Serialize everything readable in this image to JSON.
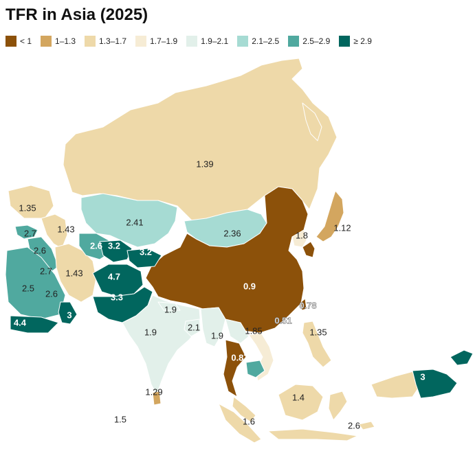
{
  "title": "TFR in Asia (2025)",
  "legend": [
    {
      "label": "< 1",
      "color": "#8c510a"
    },
    {
      "label": "1–1.3",
      "color": "#d3a65f"
    },
    {
      "label": "1.3–1.7",
      "color": "#eed9a9"
    },
    {
      "label": "1.7–1.9",
      "color": "#f6ecd5"
    },
    {
      "label": "1.9–2.1",
      "color": "#e2f0ea"
    },
    {
      "label": "2.1–2.5",
      "color": "#a6dbd3"
    },
    {
      "label": "2.5–2.9",
      "color": "#50a99f"
    },
    {
      "label": "≥ 2.9",
      "color": "#01665e"
    }
  ],
  "labels": [
    "1.39",
    "1.35",
    "1.43",
    "2.41",
    "2.36",
    "1.12",
    "1.8",
    "2.7",
    "3",
    "2.6",
    "2.6",
    "3.2",
    "3.2",
    "2.7",
    "1.43",
    "4.7",
    "2.5",
    "2.6",
    "0.9",
    "3.3",
    "0.78",
    "4.4",
    "3",
    "1.9",
    "0.51",
    "2.1",
    "1.9",
    "1.85",
    "1.35",
    "1.9",
    "0.87",
    "3",
    "1.29",
    "1.4",
    "1.5",
    "1.6",
    "2.6"
  ]
}
